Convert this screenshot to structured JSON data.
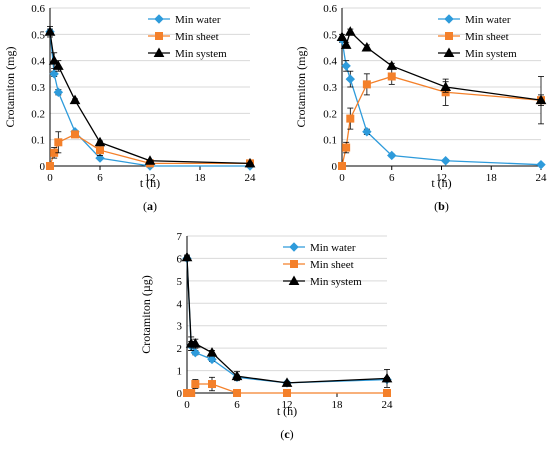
{
  "chart_data": [
    {
      "type": "line",
      "panel_label": "(a)",
      "panel_letter": "a",
      "xlabel": "t (h)",
      "ylabel": "Crotamiton (mg)",
      "xlim": [
        0,
        24
      ],
      "ylim": [
        0,
        0.6
      ],
      "xticks": [
        0,
        6,
        12,
        18,
        24
      ],
      "yticks": [
        0,
        0.1,
        0.2,
        0.3,
        0.4,
        0.5,
        0.6
      ],
      "ytick_labels": [
        "0",
        "0.1",
        "0.2",
        "0.3",
        "0.4",
        "0.5",
        "0.6"
      ],
      "grid": "horizontal",
      "legend_position": "top-right",
      "series": [
        {
          "name": "Min water",
          "color": "#2E9BDB",
          "marker": "diamond",
          "x": [
            0,
            0.5,
            1,
            3,
            6,
            12,
            24
          ],
          "y": [
            0.51,
            0.35,
            0.28,
            0.13,
            0.03,
            0.0,
            0.0
          ],
          "err": [
            0.01,
            0.01,
            0.01,
            0.005,
            0.003,
            0.0,
            0.0
          ]
        },
        {
          "name": "Min sheet",
          "color": "#F4802A",
          "marker": "square",
          "x": [
            0,
            0.5,
            1,
            3,
            6,
            12,
            24
          ],
          "y": [
            0.0,
            0.05,
            0.09,
            0.12,
            0.06,
            0.01,
            0.01
          ],
          "err": [
            0.0,
            0.02,
            0.04,
            0.01,
            0.02,
            0.005,
            0.005
          ]
        },
        {
          "name": "Min system",
          "color": "#000000",
          "marker": "triangle",
          "x": [
            0,
            0.5,
            1,
            3,
            6,
            12,
            24
          ],
          "y": [
            0.51,
            0.4,
            0.38,
            0.25,
            0.09,
            0.02,
            0.01
          ],
          "err": [
            0.02,
            0.03,
            0.02,
            0.005,
            0.005,
            0.003,
            0.002
          ]
        }
      ]
    },
    {
      "type": "line",
      "panel_label": "(b)",
      "panel_letter": "b",
      "xlabel": "t (h)",
      "ylabel": "Crotamiton (mg)",
      "xlim": [
        0,
        24
      ],
      "ylim": [
        0,
        0.6
      ],
      "xticks": [
        0,
        6,
        12,
        18,
        24
      ],
      "yticks": [
        0,
        0.1,
        0.2,
        0.3,
        0.4,
        0.5,
        0.6
      ],
      "ytick_labels": [
        "0",
        "0.1",
        "0.2",
        "0.3",
        "0.4",
        "0.5",
        "0.6"
      ],
      "grid": "horizontal",
      "legend_position": "top-right",
      "series": [
        {
          "name": "Min water",
          "color": "#2E9BDB",
          "marker": "diamond",
          "x": [
            0,
            0.5,
            1,
            3,
            6,
            12.5,
            24
          ],
          "y": [
            0.48,
            0.38,
            0.33,
            0.13,
            0.04,
            0.02,
            0.005
          ],
          "err": [
            0.01,
            0.02,
            0.03,
            0.01,
            0.005,
            0.005,
            0.002
          ]
        },
        {
          "name": "Min sheet",
          "color": "#F4802A",
          "marker": "square",
          "x": [
            0,
            0.5,
            1,
            3,
            6,
            12.5,
            24
          ],
          "y": [
            0.0,
            0.07,
            0.18,
            0.31,
            0.34,
            0.28,
            0.25
          ],
          "err": [
            0.0,
            0.02,
            0.04,
            0.04,
            0.03,
            0.05,
            0.09
          ]
        },
        {
          "name": "Min system",
          "color": "#000000",
          "marker": "triangle",
          "x": [
            0,
            0.5,
            1,
            3,
            6,
            12.5,
            24
          ],
          "y": [
            0.49,
            0.46,
            0.51,
            0.45,
            0.38,
            0.3,
            0.25
          ],
          "err": [
            0.01,
            0.01,
            0.01,
            0.01,
            0.01,
            0.02,
            0.02
          ]
        }
      ]
    },
    {
      "type": "line",
      "panel_label": "(c)",
      "panel_letter": "c",
      "xlabel": "t (h)",
      "ylabel": "Crotamiton (µg)",
      "xlim": [
        0,
        24
      ],
      "ylim": [
        0,
        7
      ],
      "xticks": [
        0,
        6,
        12,
        18,
        24
      ],
      "yticks": [
        0,
        1,
        2,
        3,
        4,
        5,
        6,
        7
      ],
      "ytick_labels": [
        "0",
        "1",
        "2",
        "3",
        "4",
        "5",
        "6",
        "7"
      ],
      "grid": "horizontal",
      "legend_position": "top-right",
      "series": [
        {
          "name": "Min water",
          "color": "#2E9BDB",
          "marker": "diamond",
          "x": [
            0,
            0.5,
            1,
            3,
            6,
            12,
            24
          ],
          "y": [
            6.0,
            2.1,
            1.8,
            1.5,
            0.7,
            0.45,
            0.6
          ],
          "err": [
            0.1,
            0.2,
            0.1,
            0.1,
            0.1,
            0.05,
            0.1
          ]
        },
        {
          "name": "Min sheet",
          "color": "#F4802A",
          "marker": "square",
          "x": [
            0,
            0.5,
            1,
            3,
            6,
            12,
            24
          ],
          "y": [
            0.0,
            0.0,
            0.4,
            0.4,
            0.0,
            0.0,
            0.0
          ],
          "err": [
            0.0,
            0.0,
            0.2,
            0.3,
            0.0,
            0.0,
            0.0
          ]
        },
        {
          "name": "Min system",
          "color": "#000000",
          "marker": "triangle",
          "x": [
            0,
            0.5,
            1,
            3,
            6,
            12,
            24
          ],
          "y": [
            6.05,
            2.2,
            2.2,
            1.8,
            0.75,
            0.45,
            0.65
          ],
          "err": [
            0.1,
            0.3,
            0.2,
            0.1,
            0.2,
            0.05,
            0.4
          ]
        }
      ]
    }
  ]
}
